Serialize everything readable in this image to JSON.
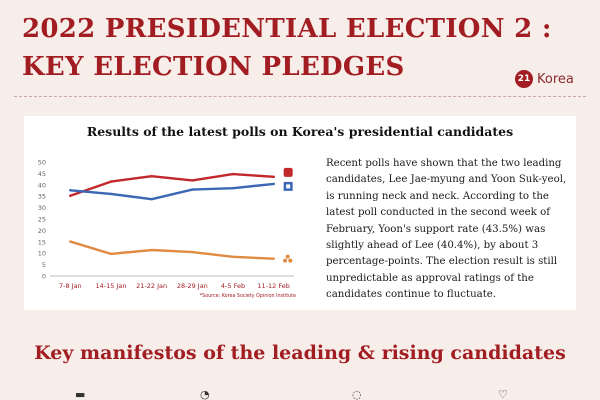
{
  "header": {
    "title_line1": "2022 PRESIDENTIAL ELECTION 2 :",
    "title_line2": "KEY ELECTION PLEDGES",
    "logo_mark": "21",
    "logo_text": "Korea"
  },
  "description": "Recent polls have shown that the two leading candidates, Lee Jae-myung and Yoon Suk-yeol, is running neck and neck.  According to the latest poll conducted in the second week of February, Yoon's support rate (43.5%) was slightly ahead of Lee (40.4%), by about 3 percentage-points.  The election result is still unpredictable as approval ratings of the candidates continue to fluctuate.",
  "subtitle": "Key manifestos of the leading & rising candidates",
  "colors": {
    "accent": "#a11d22",
    "red_series": "#c0282b",
    "blue_series": "#3b67b4",
    "orange_series": "#e08a42"
  },
  "icons": [
    "party-red-icon",
    "party-blue-icon",
    "party-orange-icon"
  ],
  "chart_data": {
    "type": "line",
    "title": "Results of the latest polls on Korea's presidential candidates",
    "source": "*Source: Korea Society Opinion Institute",
    "categories": [
      "7-8 Jan",
      "14-15 Jan",
      "21-22 Jan",
      "28-29 Jan",
      "4-5 Feb",
      "11-12 Feb"
    ],
    "ylim": [
      0,
      50
    ],
    "yticks": [
      0,
      5,
      10,
      15,
      20,
      25,
      30,
      35,
      40,
      45,
      50
    ],
    "grid": false,
    "series": [
      {
        "color": "#c0282b",
        "values": [
          35.2,
          41.4,
          43.8,
          41.9,
          44.7,
          43.5
        ]
      },
      {
        "color": "#3b67b4",
        "values": [
          37.6,
          36.0,
          33.7,
          37.9,
          38.5,
          40.4
        ]
      },
      {
        "color": "#e08a42",
        "values": [
          15.1,
          9.7,
          11.4,
          10.5,
          8.4,
          7.6
        ]
      }
    ]
  }
}
